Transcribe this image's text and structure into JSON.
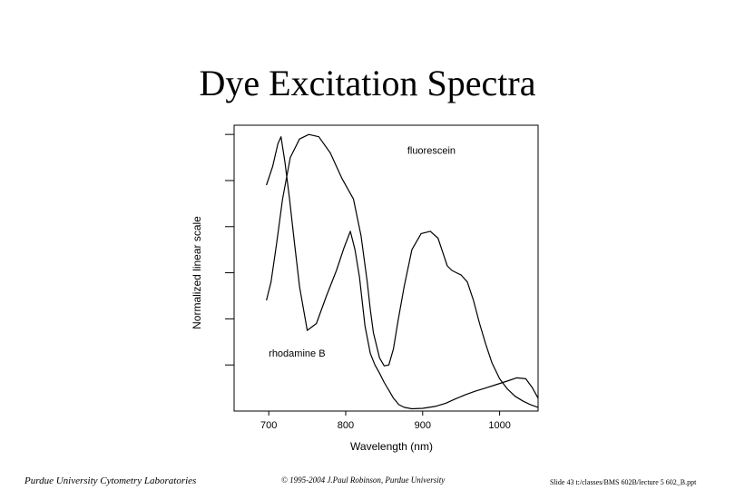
{
  "slide": {
    "title": "Dye Excitation Spectra",
    "footer_left": "Purdue University Cytometry Laboratories",
    "footer_center": "© 1995-2004 J.Paul Robinson, Purdue University",
    "footer_right": "Slide 43 t:/classes/BMS 602B/lecture 5 602_B.ppt"
  },
  "chart_data": {
    "type": "line",
    "title": "",
    "xlabel": "Wavelength (nm)",
    "ylabel": "Normalized linear scale",
    "xlim": [
      655,
      1050
    ],
    "ylim": [
      0,
      6.2
    ],
    "xticks": [
      700,
      800,
      900,
      1000
    ],
    "yticks": [
      1,
      2,
      3,
      4,
      5,
      6
    ],
    "show_ytick_labels": false,
    "grid": false,
    "line_color": "#000000",
    "series": [
      {
        "name": "fluorescein",
        "x": [
          697,
          705,
          712,
          716,
          721,
          727,
          733,
          740,
          750,
          762,
          775,
          788,
          798,
          806,
          812,
          818,
          825,
          832,
          838,
          844,
          850,
          856,
          862,
          869,
          876,
          886,
          900,
          916,
          930,
          942,
          955,
          968,
          982,
          995,
          1008,
          1022,
          1034,
          1042,
          1050
        ],
        "y": [
          4.9,
          5.3,
          5.8,
          5.95,
          5.4,
          4.6,
          3.7,
          2.7,
          1.75,
          1.9,
          2.5,
          3.05,
          3.55,
          3.9,
          3.5,
          2.9,
          1.85,
          1.25,
          1.0,
          0.82,
          0.62,
          0.45,
          0.28,
          0.14,
          0.08,
          0.05,
          0.06,
          0.1,
          0.17,
          0.26,
          0.35,
          0.43,
          0.5,
          0.57,
          0.64,
          0.72,
          0.7,
          0.52,
          0.28
        ]
      },
      {
        "name": "rhodamine B",
        "x": [
          697,
          703,
          710,
          718,
          728,
          740,
          752,
          765,
          780,
          795,
          810,
          820,
          828,
          832,
          836,
          844,
          850,
          856,
          862,
          868,
          876,
          886,
          898,
          910,
          920,
          926,
          932,
          938,
          944,
          950,
          958,
          966,
          974,
          982,
          990,
          1000,
          1010,
          1020,
          1030,
          1040,
          1050
        ],
        "y": [
          2.4,
          2.8,
          3.6,
          4.6,
          5.5,
          5.9,
          6.0,
          5.95,
          5.6,
          5.05,
          4.6,
          3.8,
          2.8,
          2.2,
          1.7,
          1.15,
          0.98,
          1.0,
          1.35,
          1.95,
          2.7,
          3.5,
          3.85,
          3.9,
          3.75,
          3.45,
          3.15,
          3.05,
          3.0,
          2.95,
          2.8,
          2.4,
          1.9,
          1.45,
          1.05,
          0.7,
          0.48,
          0.32,
          0.22,
          0.14,
          0.08
        ]
      }
    ],
    "annotations": [
      {
        "text": "fluorescein",
        "x": 880,
        "y": 5.58
      },
      {
        "text": "rhodamine B",
        "x": 700,
        "y": 1.18
      }
    ]
  }
}
